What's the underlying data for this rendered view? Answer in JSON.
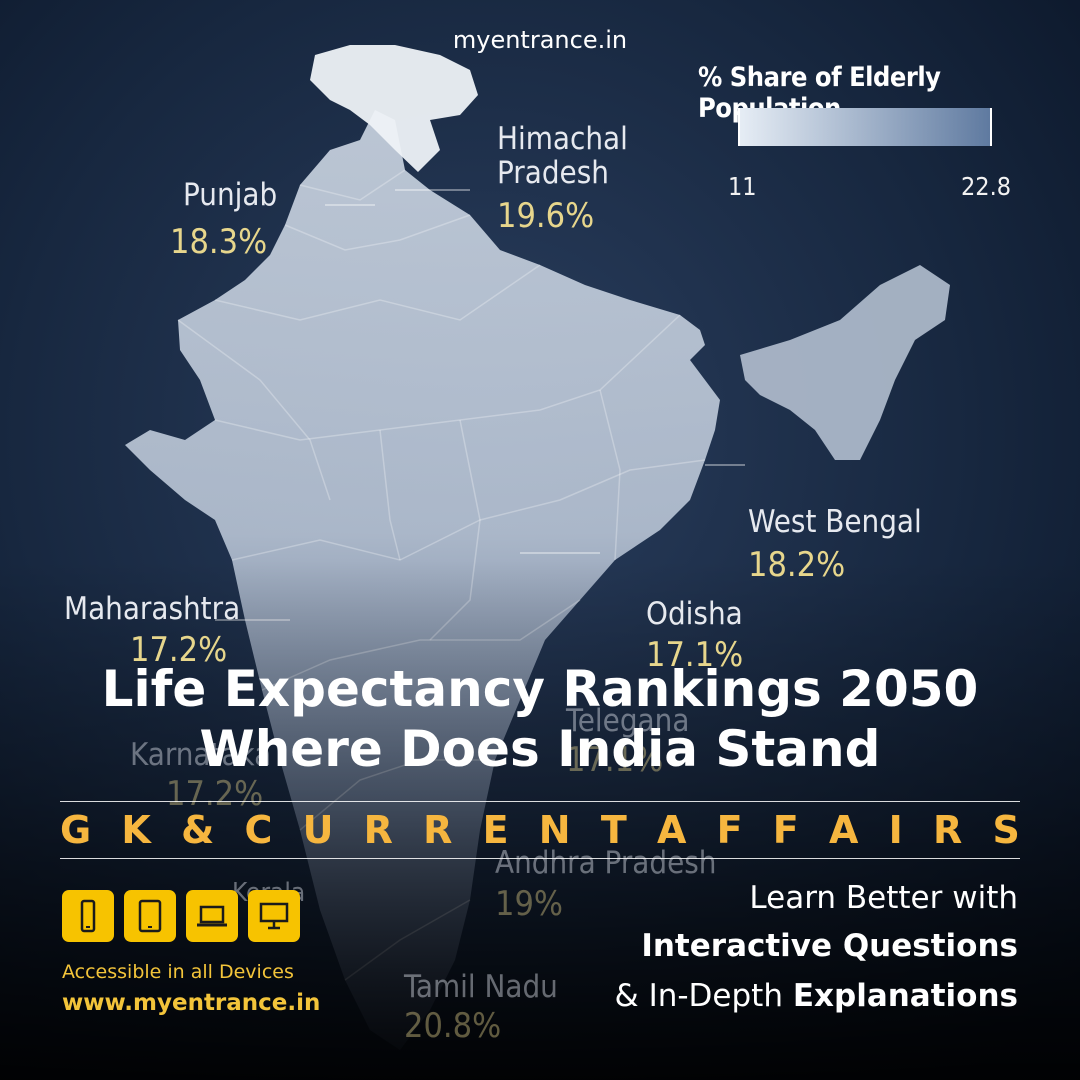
{
  "watermark": "myentrance.in",
  "legend": {
    "title": "% Share of Elderly Population",
    "min_label": "11",
    "max_label": "22.8",
    "low_color": "#e6edf5",
    "high_color": "#5f7aa0"
  },
  "states": [
    {
      "name": "Punjab",
      "value": "18.3%"
    },
    {
      "name": "Himachal\nPradesh",
      "value": "19.6%"
    },
    {
      "name": "West Bengal",
      "value": "18.2%"
    },
    {
      "name": "Maharashtra",
      "value": "17.2%"
    },
    {
      "name": "Odisha",
      "value": "17.1%"
    },
    {
      "name": "Telegana",
      "value": "17.1%"
    },
    {
      "name": "Karnataka",
      "value": "17.2%"
    },
    {
      "name": "Andhra Pradesh",
      "value": "19%"
    },
    {
      "name": "Kerala",
      "value": ""
    },
    {
      "name": "Tamil Nadu",
      "value": "20.8%"
    }
  ],
  "headline": {
    "line1": "Life Expectancy Rankings 2050",
    "line2": "Where Does India Stand"
  },
  "category_letters": [
    "G",
    "K",
    "&",
    "C",
    "U",
    "R",
    "R",
    "E",
    "N",
    "T",
    "A",
    "F",
    "F",
    "A",
    "I",
    "R",
    "S"
  ],
  "devices": [
    {
      "icon": "smartphone-icon"
    },
    {
      "icon": "tablet-icon"
    },
    {
      "icon": "laptop-icon"
    },
    {
      "icon": "desktop-icon"
    }
  ],
  "accessible_text": "Accessible in all Devices",
  "website": "www.myentrance.in",
  "promo": {
    "line1": "Learn Better with",
    "line2": "Interactive Questions",
    "line3_prefix": "& In-Depth ",
    "line3_bold": "Explanations"
  },
  "colors": {
    "background": "#0d1a2f",
    "accent_orange": "#f6b63f",
    "accent_yellow": "#f7c300",
    "value_gold": "#e7d68c"
  }
}
